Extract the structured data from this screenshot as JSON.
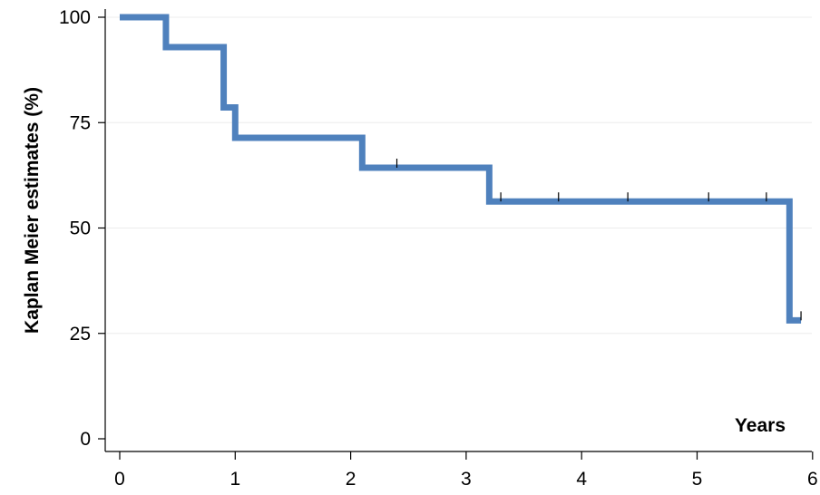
{
  "chart_data": {
    "type": "line",
    "subtype": "kaplan-meier-step",
    "xlabel": "Years",
    "ylabel": "Kaplan Meier estimates (%)",
    "xlim": [
      0,
      6
    ],
    "ylim": [
      0,
      100
    ],
    "x_ticks": [
      0,
      1,
      2,
      3,
      4,
      5,
      6
    ],
    "y_ticks": [
      0,
      25,
      50,
      75,
      100
    ],
    "grid": "horizontal",
    "series": [
      {
        "color": "#4f81bd",
        "steps": [
          {
            "x": 0,
            "y": 100
          },
          {
            "x": 0.4,
            "y": 92.9
          },
          {
            "x": 0.9,
            "y": 78.6
          },
          {
            "x": 1.0,
            "y": 71.4
          },
          {
            "x": 2.1,
            "y": 64.3
          },
          {
            "x": 3.2,
            "y": 56.3
          },
          {
            "x": 5.8,
            "y": 28.1
          }
        ],
        "end_x": 5.9,
        "censored": [
          {
            "x": 2.4,
            "y": 64.3
          },
          {
            "x": 3.3,
            "y": 56.3
          },
          {
            "x": 3.8,
            "y": 56.3
          },
          {
            "x": 4.4,
            "y": 56.3
          },
          {
            "x": 5.1,
            "y": 56.3
          },
          {
            "x": 5.6,
            "y": 56.3
          },
          {
            "x": 5.9,
            "y": 28.1
          }
        ]
      }
    ]
  }
}
